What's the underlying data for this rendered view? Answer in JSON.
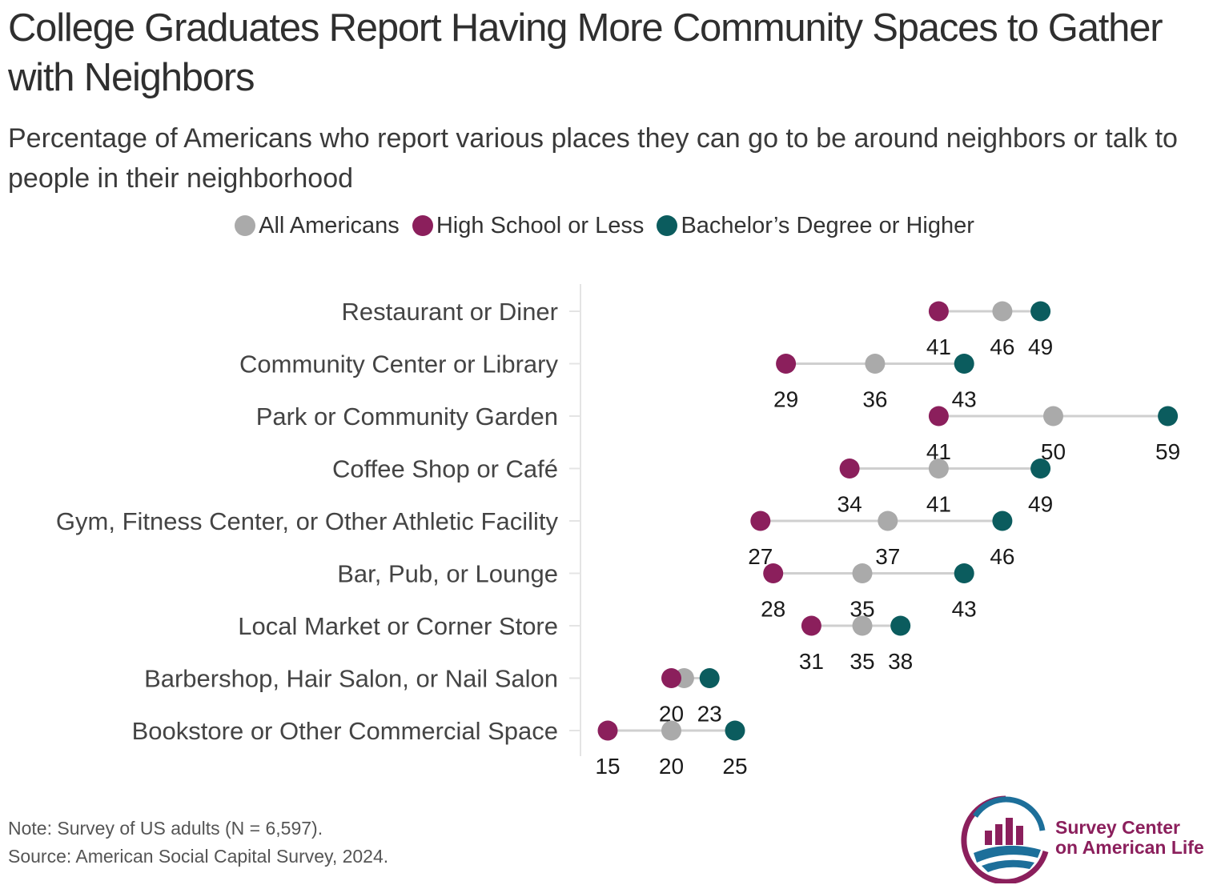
{
  "header": {
    "title": "College Graduates Report Having More Community Spaces to Gather with Neighbors",
    "subtitle": "Percentage of Americans who report various places they can go to be around neighbors or talk to people in their neighborhood"
  },
  "legend": [
    {
      "label": "All Americans",
      "color": "#aaaaaa"
    },
    {
      "label": "High School or Less",
      "color": "#8b1f5c"
    },
    {
      "label": "Bachelor’s Degree or Higher",
      "color": "#0b5c5e"
    }
  ],
  "chart_data": {
    "type": "dot-plot",
    "categories": [
      "Restaurant or Diner",
      "Community Center or Library",
      "Park or Community Garden",
      "Coffee Shop or Café",
      "Gym, Fitness Center, or Other Athletic Facility",
      "Bar, Pub, or Lounge",
      "Local Market or Corner Store",
      "Barbershop, Hair Salon, or Nail Salon",
      "Bookstore or Other Commercial Space"
    ],
    "series": [
      {
        "name": "All Americans",
        "color": "#aaaaaa",
        "values": [
          46,
          36,
          50,
          41,
          37,
          35,
          35,
          21,
          20
        ]
      },
      {
        "name": "High School or Less",
        "color": "#8b1f5c",
        "values": [
          41,
          29,
          41,
          34,
          27,
          28,
          31,
          20,
          15
        ]
      },
      {
        "name": "Bachelor’s Degree or Higher",
        "color": "#0b5c5e",
        "values": [
          49,
          43,
          59,
          49,
          46,
          43,
          38,
          23,
          25
        ]
      }
    ],
    "labels": [
      [
        "41",
        "46",
        "49"
      ],
      [
        "29",
        "36",
        "43"
      ],
      [
        "41",
        "50",
        "59"
      ],
      [
        "34",
        "41",
        "49"
      ],
      [
        "27",
        "37",
        "46"
      ],
      [
        "28",
        "35",
        "43"
      ],
      [
        "31",
        "35",
        "38"
      ],
      [
        "20",
        "",
        "23"
      ],
      [
        "15",
        "20",
        "25"
      ]
    ],
    "label_order": [
      "High School or Less",
      "All Americans",
      "Bachelor’s Degree or Higher"
    ],
    "grid": false
  },
  "footer": {
    "note": "Note: Survey of US adults (N = 6,597).",
    "source": "Source: American Social Capital Survey, 2024.",
    "logo_line1": "Survey Center",
    "logo_line2": "on American Life"
  }
}
